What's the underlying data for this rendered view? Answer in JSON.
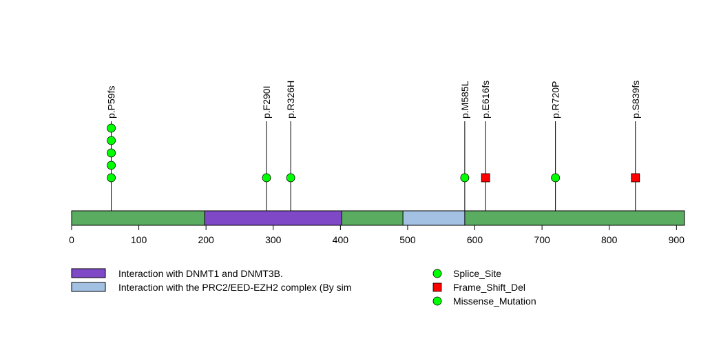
{
  "chart_data": {
    "type": "lollipop",
    "x_axis": {
      "min": 0,
      "max": 912,
      "ticks": [
        0,
        100,
        200,
        300,
        400,
        500,
        600,
        700,
        800,
        900
      ]
    },
    "protein_length": 912,
    "domains": [
      {
        "name": "Interaction with DNMT1 and DNMT3B.",
        "start": 198,
        "end": 402,
        "color": "#7f48c6"
      },
      {
        "name": "Interaction with the PRC2/EED-EZH2 complex (By sim",
        "start": 493,
        "end": 585,
        "color": "#a2c1e3"
      }
    ],
    "backbone_color": "#5aac61",
    "mutations": [
      {
        "label": "p.P59fs",
        "position": 59,
        "count": 5,
        "type": "Splice_Site"
      },
      {
        "label": "p.F290I",
        "position": 290,
        "count": 1,
        "type": "Missense_Mutation"
      },
      {
        "label": "p.R326H",
        "position": 326,
        "count": 1,
        "type": "Missense_Mutation"
      },
      {
        "label": "p.M585L",
        "position": 585,
        "count": 1,
        "type": "Missense_Mutation"
      },
      {
        "label": "p.E616fs",
        "position": 616,
        "count": 1,
        "type": "Frame_Shift_Del"
      },
      {
        "label": "p.R720P",
        "position": 720,
        "count": 1,
        "type": "Missense_Mutation"
      },
      {
        "label": "p.S839fs",
        "position": 839,
        "count": 1,
        "type": "Frame_Shift_Del"
      }
    ],
    "legend": {
      "domains": [
        {
          "label": "Interaction with DNMT1 and DNMT3B.",
          "color": "#7f48c6"
        },
        {
          "label": "Interaction with the PRC2/EED-EZH2 complex (By sim",
          "color": "#a2c1e3"
        }
      ],
      "mutation_types": [
        {
          "label": "Splice_Site",
          "shape": "circle",
          "color": "#00ff00"
        },
        {
          "label": "Frame_Shift_Del",
          "shape": "square",
          "color": "#ff0000"
        },
        {
          "label": "Missense_Mutation",
          "shape": "circle",
          "color": "#00ff00"
        }
      ]
    }
  }
}
